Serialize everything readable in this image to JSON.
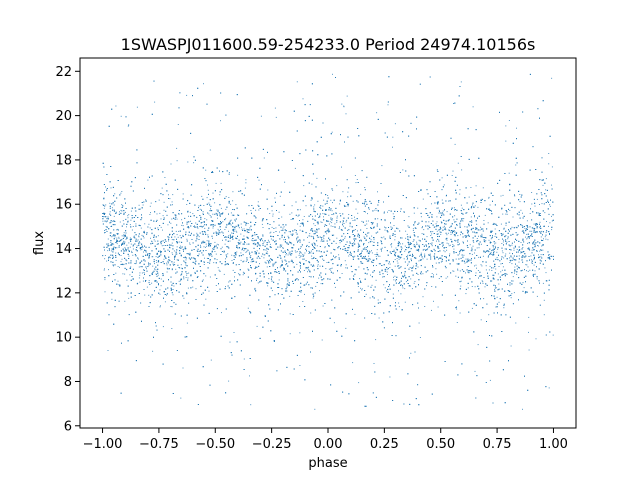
{
  "chart_data": {
    "type": "scatter",
    "title": "1SWASPJ011600.59-254233.0 Period 24974.10156s",
    "xlabel": "phase",
    "ylabel": "flux",
    "xlim": [
      -1.1,
      1.1
    ],
    "ylim": [
      5.9,
      22.6
    ],
    "xticks": [
      -1.0,
      -0.75,
      -0.5,
      -0.25,
      0.0,
      0.25,
      0.5,
      0.75,
      1.0
    ],
    "xtick_labels": [
      "−1.00",
      "−0.75",
      "−0.50",
      "−0.25",
      "0.00",
      "0.25",
      "0.50",
      "0.75",
      "1.00"
    ],
    "yticks": [
      6,
      8,
      10,
      12,
      14,
      16,
      18,
      20,
      22
    ],
    "ytick_labels": [
      "6",
      "8",
      "10",
      "12",
      "14",
      "16",
      "18",
      "20",
      "22"
    ],
    "grid": false,
    "marker_color": "#1f77b4",
    "series": [
      {
        "x_range": [
          -1.0,
          1.0
        ],
        "flux_envelope": [
          [
            -1.0,
            14.6
          ],
          [
            -0.85,
            14.2
          ],
          [
            -0.75,
            13.7
          ],
          [
            -0.65,
            13.9
          ],
          [
            -0.5,
            14.6
          ],
          [
            -0.35,
            14.2
          ],
          [
            -0.25,
            13.7
          ],
          [
            -0.15,
            13.9
          ],
          [
            0.0,
            14.6
          ],
          [
            0.15,
            14.2
          ],
          [
            0.25,
            13.7
          ],
          [
            0.35,
            13.9
          ],
          [
            0.5,
            14.6
          ],
          [
            0.65,
            14.2
          ],
          [
            0.75,
            13.7
          ],
          [
            0.85,
            13.9
          ],
          [
            1.0,
            14.6
          ]
        ],
        "core_spread": 1.3,
        "outlier_range": [
          6.7,
          21.9
        ]
      }
    ]
  }
}
